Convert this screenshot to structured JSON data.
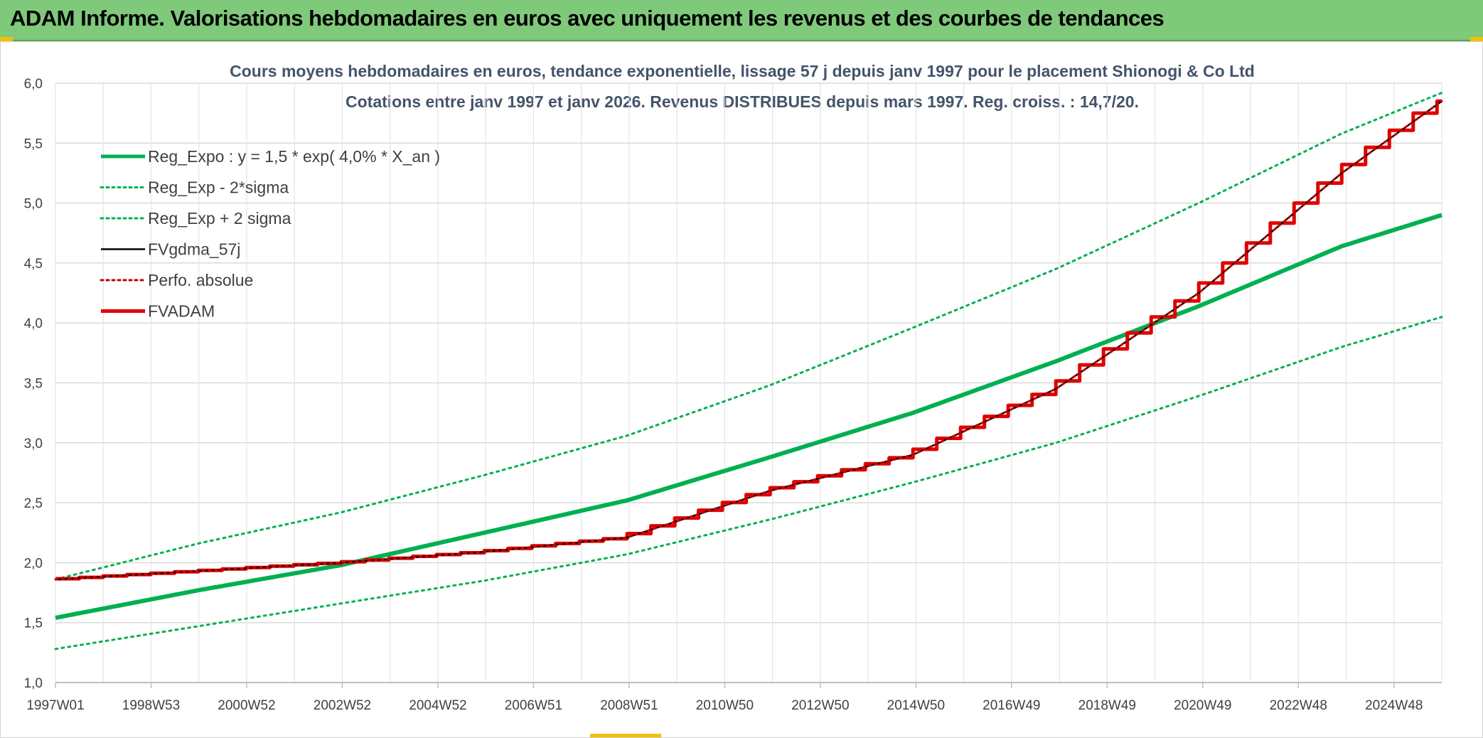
{
  "banner": {
    "title": "ADAM Informe. Valorisations hebdomadaires en euros avec uniquement les revenus et des courbes de tendances"
  },
  "chart_data": {
    "type": "line",
    "title": "Cours moyens hebdomadaires en euros, tendance exponentielle, lissage 57 j depuis janv 1997 pour le placement Shionogi & Co Ltd",
    "subtitle": "Cotations entre janv 1997 et janv 2026. Revenus DISTRIBUES depuis mars 1997. Reg. croiss. : 14,7/20.",
    "xlabel": "",
    "ylabel": "",
    "ylim": [
      1.0,
      6.0
    ],
    "xlim": [
      1997.0,
      2026.1
    ],
    "yticks": [
      "1,0",
      "1,5",
      "2,0",
      "2,5",
      "3,0",
      "3,5",
      "4,0",
      "4,5",
      "5,0",
      "5,5",
      "6,0"
    ],
    "xticks": [
      "1997W01",
      "1998W53",
      "2000W52",
      "2002W52",
      "2004W52",
      "2006W51",
      "2008W51",
      "2010W50",
      "2012W50",
      "2014W50",
      "2016W49",
      "2018W49",
      "2020W49",
      "2022W48",
      "2024W48"
    ],
    "grid": true,
    "legend_position": "top-left",
    "colors": {
      "trend": "#00b050",
      "fv57": "#000000",
      "perfo": "#c00000",
      "adam": "#e00000",
      "grid": "#d9d9d9",
      "title": "#44546a"
    },
    "series": [
      {
        "name": "Reg_Expo : y = 1,5 * exp( 4,0% *  X_an )",
        "style": "solid-thick",
        "color": "#00b050",
        "x": [
          1997,
          2000,
          2003,
          2006,
          2009,
          2012,
          2015,
          2018,
          2021,
          2024,
          2026.1
        ],
        "values": [
          1.54,
          1.77,
          1.98,
          2.25,
          2.52,
          2.88,
          3.25,
          3.68,
          4.14,
          4.64,
          4.9
        ]
      },
      {
        "name": "Reg_Exp - 2*sigma",
        "style": "dotted",
        "color": "#00b050",
        "x": [
          1997,
          2000,
          2003,
          2006,
          2009,
          2012,
          2015,
          2018,
          2021,
          2024,
          2026.1
        ],
        "values": [
          1.28,
          1.47,
          1.66,
          1.85,
          2.07,
          2.36,
          2.67,
          3.0,
          3.39,
          3.8,
          4.05
        ]
      },
      {
        "name": "Reg_Exp + 2 sigma",
        "style": "dotted",
        "color": "#00b050",
        "x": [
          1997,
          2000,
          2003,
          2006,
          2009,
          2012,
          2015,
          2018,
          2021,
          2024,
          2026.1
        ],
        "values": [
          1.86,
          2.16,
          2.42,
          2.73,
          3.06,
          3.48,
          3.96,
          4.45,
          5.0,
          5.58,
          5.92
        ]
      },
      {
        "name": "FVgdma_57j",
        "style": "solid",
        "color": "#000000",
        "x": [
          1997,
          2000,
          2003,
          2006,
          2009,
          2012,
          2015,
          2018,
          2021,
          2024,
          2026.1
        ],
        "values": [
          1.86,
          1.93,
          2.0,
          2.09,
          2.21,
          2.6,
          2.9,
          3.45,
          4.25,
          5.25,
          5.85
        ]
      },
      {
        "name": "Perfo. absolue",
        "style": "dotted",
        "color": "#c00000",
        "x": [
          1997,
          2000,
          2003,
          2006,
          2009,
          2012,
          2015,
          2018,
          2021,
          2024,
          2026.1
        ],
        "values": [
          1.86,
          1.93,
          2.0,
          2.09,
          2.21,
          2.6,
          2.9,
          3.45,
          4.25,
          5.25,
          5.85
        ]
      },
      {
        "name": "FVADAM",
        "style": "step-thick",
        "color": "#e00000",
        "x": [
          1997,
          2000,
          2003,
          2006,
          2009,
          2012,
          2015,
          2018,
          2021,
          2024,
          2026.1
        ],
        "values": [
          1.86,
          1.93,
          2.0,
          2.09,
          2.21,
          2.6,
          2.9,
          3.45,
          4.25,
          5.25,
          5.85
        ]
      }
    ]
  }
}
